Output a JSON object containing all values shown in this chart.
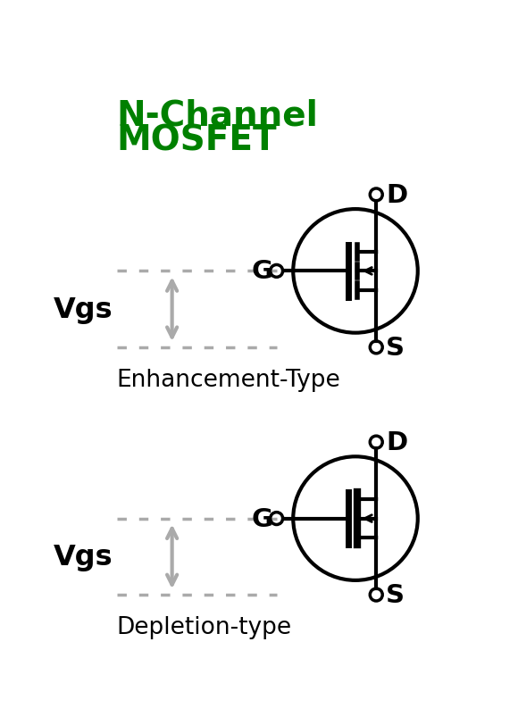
{
  "title_line1": "N-Channel",
  "title_line2": "MOSFET",
  "title_color": "#008000",
  "title_fontsize": 28,
  "label_enhancement": "Enhancement-Type",
  "label_depletion": "Depletion-type",
  "label_fontsize": 19,
  "vgs_fontsize": 23,
  "terminal_fontsize": 21,
  "bg_color": "#ffffff",
  "symbol_color": "#000000",
  "arrow_color": "#aaaaaa",
  "dotted_color": "#aaaaaa"
}
